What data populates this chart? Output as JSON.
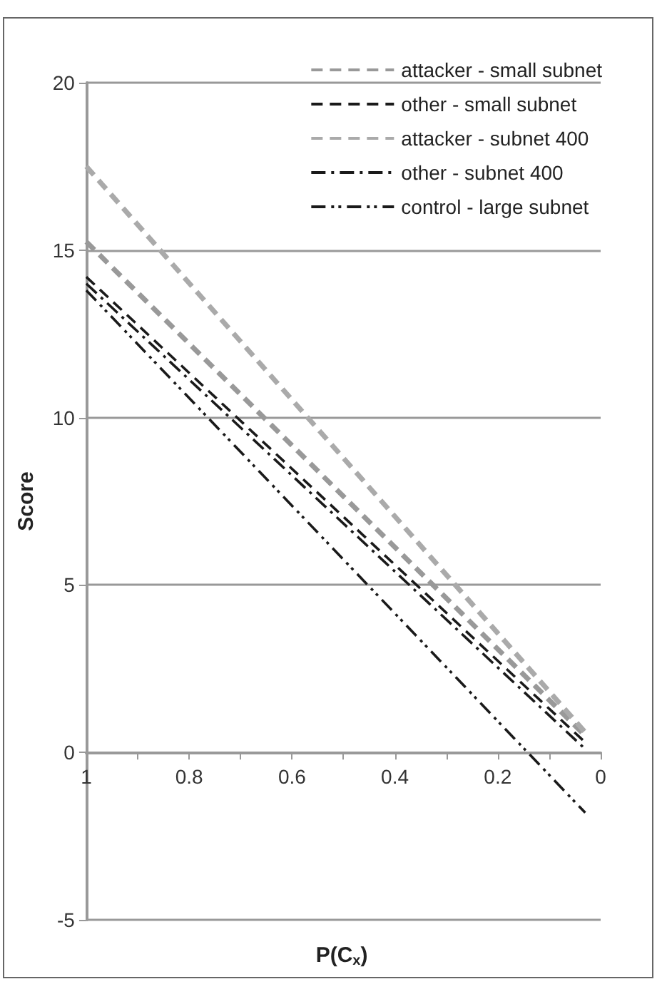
{
  "chart_data": {
    "type": "line",
    "xlabel": "P(C$_{x}$)",
    "ylabel": "Score",
    "x": [
      1,
      0.03
    ],
    "series": [
      {
        "name": "attacker - small subnet",
        "color": "#999999",
        "values": [
          15.25,
          0.5
        ],
        "line_style": "dashed"
      },
      {
        "name": "other - small subnet",
        "color": "#1a1a1a",
        "values": [
          14.2,
          0.3
        ],
        "line_style": "dashed"
      },
      {
        "name": "attacker - subnet 400",
        "color": "#aaaaaa",
        "values": [
          17.5,
          0.6
        ],
        "line_style": "dashed"
      },
      {
        "name": "other - subnet 400",
        "color": "#1a1a1a",
        "values": [
          14.0,
          0.1
        ],
        "line_style": "dashdot"
      },
      {
        "name": "control - large subnet",
        "color": "#1a1a1a",
        "values": [
          13.8,
          -1.8
        ],
        "line_style": "dashdotdot"
      }
    ],
    "xlim": [
      1,
      0
    ],
    "xticks": [
      1,
      {
        "value": 0.9,
        "label": null
      },
      0.8,
      {
        "value": 0.7,
        "label": null
      },
      0.6,
      {
        "value": 0.5,
        "label": null
      },
      0.4,
      {
        "value": 0.3,
        "label": null
      },
      0.2,
      {
        "value": 0.1,
        "label": null
      },
      0
    ],
    "ylim": [
      -5,
      20
    ],
    "yticks": [
      -5,
      0,
      5,
      10,
      15,
      20
    ],
    "grid": "y",
    "legend": "top right",
    "marker": "none"
  }
}
